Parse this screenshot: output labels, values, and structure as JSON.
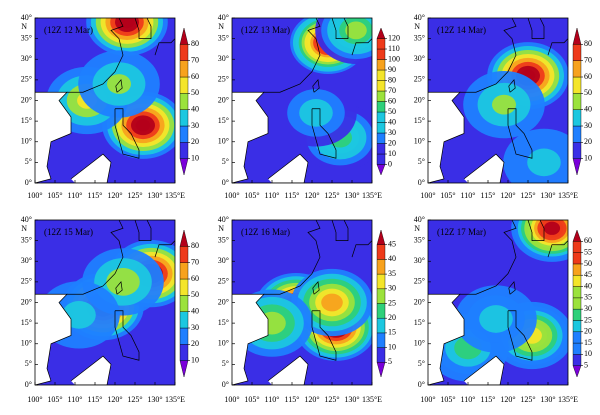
{
  "lon_range": [
    100,
    135
  ],
  "lat_range": [
    0,
    40
  ],
  "lon_ticks": [
    {
      "value": 100,
      "label": "100°"
    },
    {
      "value": 105,
      "label": "105°"
    },
    {
      "value": 110,
      "label": "110°"
    },
    {
      "value": 115,
      "label": "115°"
    },
    {
      "value": 120,
      "label": "120°"
    },
    {
      "value": 125,
      "label": "125°"
    },
    {
      "value": 130,
      "label": "130°"
    },
    {
      "value": 135,
      "label": "135°E"
    }
  ],
  "lat_ticks": [
    {
      "value": 0,
      "label": "0°"
    },
    {
      "value": 5,
      "label": "5°"
    },
    {
      "value": 10,
      "label": "10°"
    },
    {
      "value": 15,
      "label": "15°"
    },
    {
      "value": 20,
      "label": "20°"
    },
    {
      "value": 25,
      "label": "25°"
    },
    {
      "value": 30,
      "label": "30°"
    },
    {
      "value": 35,
      "label": "35°"
    },
    {
      "value": 40,
      "label": "40°"
    }
  ],
  "lat_unit": "N",
  "colormap": [
    "#7a00d9",
    "#3a2ee6",
    "#1f7fff",
    "#1cc7e0",
    "#2ed07a",
    "#9be23c",
    "#f4e52a",
    "#f7a21d",
    "#ee3a1a",
    "#b3001a"
  ],
  "panels": [
    {
      "label": "(12Z 12 Mar)",
      "cbar_ticks": [
        10,
        20,
        30,
        40,
        50,
        60,
        70,
        80
      ],
      "maxima": [
        {
          "lon": 127,
          "lat": 14,
          "value": 85
        },
        {
          "lon": 123,
          "lat": 39,
          "value": 85
        },
        {
          "lon": 113,
          "lat": 20,
          "value": 45
        },
        {
          "lon": 121,
          "lat": 24,
          "value": 35
        }
      ]
    },
    {
      "label": "(12Z 13 Mar)",
      "cbar_ticks": [
        0,
        10,
        20,
        30,
        40,
        50,
        60,
        70,
        80,
        90,
        100,
        110,
        120
      ],
      "maxima": [
        {
          "lon": 124,
          "lat": 34,
          "value": 125
        },
        {
          "lon": 131,
          "lat": 37,
          "value": 60
        },
        {
          "lon": 127,
          "lat": 11,
          "value": 50
        },
        {
          "lon": 121,
          "lat": 17,
          "value": 30
        }
      ]
    },
    {
      "label": "(12Z 14 Mar)",
      "cbar_ticks": [
        10,
        20,
        30,
        40,
        50,
        60,
        70,
        80
      ],
      "maxima": [
        {
          "lon": 125,
          "lat": 26,
          "value": 85
        },
        {
          "lon": 119,
          "lat": 19,
          "value": 35
        },
        {
          "lon": 129,
          "lat": 5,
          "value": 25
        }
      ]
    },
    {
      "label": "(12Z 15 Mar)",
      "cbar_ticks": [
        10,
        20,
        30,
        40,
        50,
        60,
        70,
        80
      ],
      "maxima": [
        {
          "lon": 117,
          "lat": 19,
          "value": 85
        },
        {
          "lon": 129,
          "lat": 27,
          "value": 85
        },
        {
          "lon": 122,
          "lat": 25,
          "value": 40
        },
        {
          "lon": 111,
          "lat": 17,
          "value": 25
        }
      ]
    },
    {
      "label": "(12Z 16 Mar)",
      "cbar_ticks": [
        5,
        10,
        15,
        20,
        25,
        30,
        35,
        40,
        45
      ],
      "maxima": [
        {
          "lon": 116,
          "lat": 19,
          "value": 50
        },
        {
          "lon": 126,
          "lat": 14,
          "value": 50
        },
        {
          "lon": 125,
          "lat": 20,
          "value": 35
        },
        {
          "lon": 110,
          "lat": 15,
          "value": 25
        }
      ]
    },
    {
      "label": "(12Z 17 Mar)",
      "cbar_ticks": [
        5,
        10,
        15,
        20,
        25,
        30,
        35,
        40,
        45,
        50,
        55,
        60
      ],
      "maxima": [
        {
          "lon": 126,
          "lat": 12,
          "value": 40
        },
        {
          "lon": 131,
          "lat": 38,
          "value": 60
        },
        {
          "lon": 110,
          "lat": 9,
          "value": 25
        },
        {
          "lon": 117,
          "lat": 16,
          "value": 20
        }
      ]
    }
  ]
}
